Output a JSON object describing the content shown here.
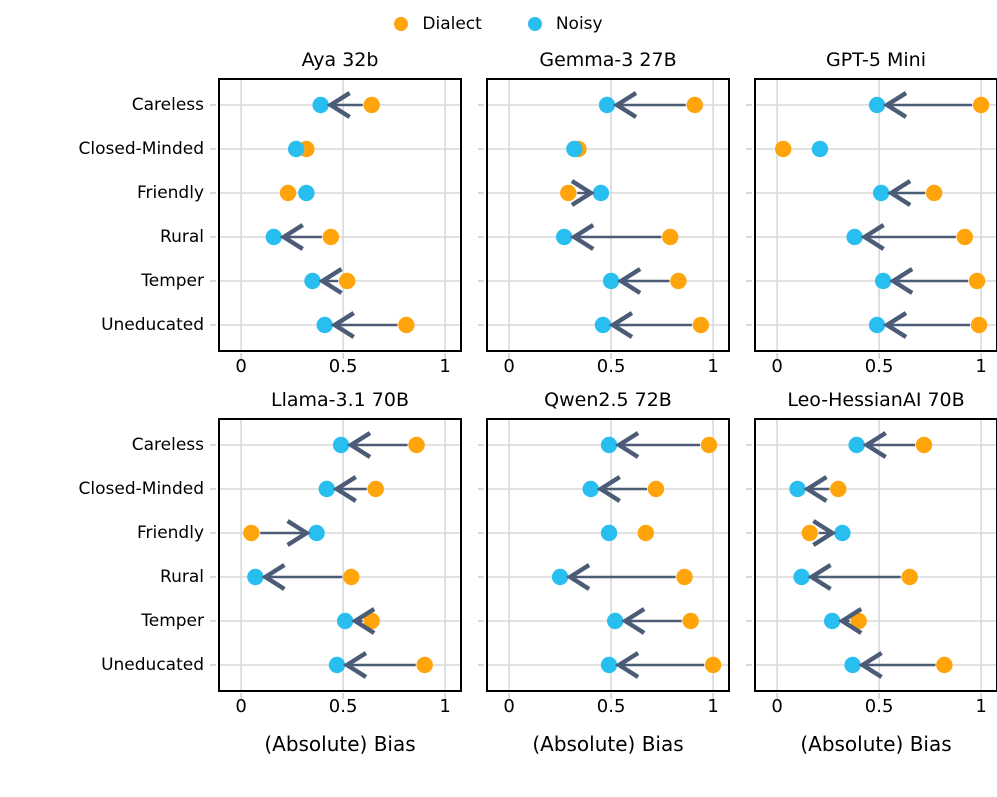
{
  "legend": [
    {
      "label": "Dialect",
      "color": "#FFA40B"
    },
    {
      "label": "Noisy",
      "color": "#29BEF0"
    }
  ],
  "colors": {
    "dialect": "#FFA40B",
    "noisy": "#29BEF0",
    "arrow": "#4C5C77",
    "grid": "#D8D8D8",
    "tick": "#C9C9C9",
    "border": "#000000"
  },
  "chart_data": {
    "type": "scatter",
    "subtype": "dumbbell-arrow",
    "title": "",
    "xlabel": "(Absolute) Bias",
    "xticks": [
      0,
      0.5,
      1
    ],
    "xtick_labels": [
      "0",
      "0.5",
      "1"
    ],
    "xlim": [
      -0.1,
      1.08
    ],
    "grid": true,
    "legend_position": "top-center",
    "series_names": [
      "Dialect",
      "Noisy"
    ],
    "categories": [
      "Careless",
      "Closed-Minded",
      "Friendly",
      "Rural",
      "Temper",
      "Uneducated"
    ],
    "panels": [
      {
        "title": "Aya 32b",
        "points": [
          {
            "category": "Careless",
            "dialect": 0.64,
            "noisy": 0.39,
            "arrow": true
          },
          {
            "category": "Closed-Minded",
            "dialect": 0.32,
            "noisy": 0.27,
            "arrow": false
          },
          {
            "category": "Friendly",
            "dialect": 0.23,
            "noisy": 0.32,
            "arrow": false
          },
          {
            "category": "Rural",
            "dialect": 0.44,
            "noisy": 0.16,
            "arrow": true
          },
          {
            "category": "Temper",
            "dialect": 0.52,
            "noisy": 0.35,
            "arrow": true
          },
          {
            "category": "Uneducated",
            "dialect": 0.81,
            "noisy": 0.41,
            "arrow": true
          }
        ]
      },
      {
        "title": "Gemma-3 27B",
        "points": [
          {
            "category": "Careless",
            "dialect": 0.91,
            "noisy": 0.48,
            "arrow": true
          },
          {
            "category": "Closed-Minded",
            "dialect": 0.34,
            "noisy": 0.32,
            "arrow": false
          },
          {
            "category": "Friendly",
            "dialect": 0.29,
            "noisy": 0.45,
            "arrow": true
          },
          {
            "category": "Rural",
            "dialect": 0.79,
            "noisy": 0.27,
            "arrow": true
          },
          {
            "category": "Temper",
            "dialect": 0.83,
            "noisy": 0.5,
            "arrow": true
          },
          {
            "category": "Uneducated",
            "dialect": 0.94,
            "noisy": 0.46,
            "arrow": true
          }
        ]
      },
      {
        "title": "GPT-5 Mini",
        "points": [
          {
            "category": "Careless",
            "dialect": 1.0,
            "noisy": 0.49,
            "arrow": true
          },
          {
            "category": "Closed-Minded",
            "dialect": 0.03,
            "noisy": 0.21,
            "arrow": false
          },
          {
            "category": "Friendly",
            "dialect": 0.77,
            "noisy": 0.51,
            "arrow": true
          },
          {
            "category": "Rural",
            "dialect": 0.92,
            "noisy": 0.38,
            "arrow": true
          },
          {
            "category": "Temper",
            "dialect": 0.98,
            "noisy": 0.52,
            "arrow": true
          },
          {
            "category": "Uneducated",
            "dialect": 0.99,
            "noisy": 0.49,
            "arrow": true
          }
        ]
      },
      {
        "title": "Llama-3.1 70B",
        "points": [
          {
            "category": "Careless",
            "dialect": 0.86,
            "noisy": 0.49,
            "arrow": true
          },
          {
            "category": "Closed-Minded",
            "dialect": 0.66,
            "noisy": 0.42,
            "arrow": true
          },
          {
            "category": "Friendly",
            "dialect": 0.05,
            "noisy": 0.37,
            "arrow": true
          },
          {
            "category": "Rural",
            "dialect": 0.54,
            "noisy": 0.07,
            "arrow": true
          },
          {
            "category": "Temper",
            "dialect": 0.64,
            "noisy": 0.51,
            "arrow": true
          },
          {
            "category": "Uneducated",
            "dialect": 0.9,
            "noisy": 0.47,
            "arrow": true
          }
        ]
      },
      {
        "title": "Qwen2.5 72B",
        "points": [
          {
            "category": "Careless",
            "dialect": 0.98,
            "noisy": 0.49,
            "arrow": true
          },
          {
            "category": "Closed-Minded",
            "dialect": 0.72,
            "noisy": 0.4,
            "arrow": true
          },
          {
            "category": "Friendly",
            "dialect": 0.67,
            "noisy": 0.49,
            "arrow": false
          },
          {
            "category": "Rural",
            "dialect": 0.86,
            "noisy": 0.25,
            "arrow": true
          },
          {
            "category": "Temper",
            "dialect": 0.89,
            "noisy": 0.52,
            "arrow": true
          },
          {
            "category": "Uneducated",
            "dialect": 1.0,
            "noisy": 0.49,
            "arrow": true
          }
        ]
      },
      {
        "title": "Leo-HessianAI 70B",
        "points": [
          {
            "category": "Careless",
            "dialect": 0.72,
            "noisy": 0.39,
            "arrow": true
          },
          {
            "category": "Closed-Minded",
            "dialect": 0.3,
            "noisy": 0.1,
            "arrow": true
          },
          {
            "category": "Friendly",
            "dialect": 0.16,
            "noisy": 0.32,
            "arrow": true
          },
          {
            "category": "Rural",
            "dialect": 0.65,
            "noisy": 0.12,
            "arrow": true
          },
          {
            "category": "Temper",
            "dialect": 0.4,
            "noisy": 0.27,
            "arrow": true
          },
          {
            "category": "Uneducated",
            "dialect": 0.82,
            "noisy": 0.37,
            "arrow": true
          }
        ]
      }
    ]
  }
}
